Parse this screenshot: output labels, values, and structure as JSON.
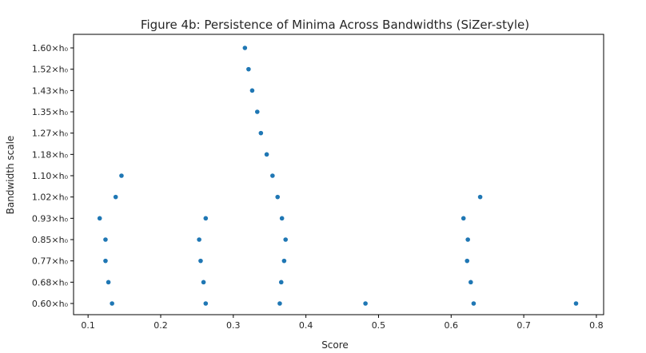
{
  "chart_data": {
    "type": "scatter",
    "title": "Figure 4b: Persistence of Minima Across Bandwidths (SiZer-style)",
    "xlabel": "Score",
    "ylabel": "Bandwidth scale",
    "xlim": [
      0.08,
      0.81
    ],
    "x_ticks": [
      "0.1",
      "0.2",
      "0.3",
      "0.4",
      "0.5",
      "0.6",
      "0.7",
      "0.8"
    ],
    "y_categories": [
      "0.60×h₀",
      "0.68×h₀",
      "0.77×h₀",
      "0.85×h₀",
      "0.93×h₀",
      "1.02×h₀",
      "1.10×h₀",
      "1.18×h₀",
      "1.27×h₀",
      "1.35×h₀",
      "1.43×h₀",
      "1.52×h₀",
      "1.60×h₀"
    ],
    "grid": false,
    "marker_color": "#1f77b4",
    "series": [
      {
        "points": [
          {
            "x": 0.133,
            "y": "0.60×h₀"
          },
          {
            "x": 0.262,
            "y": "0.60×h₀"
          },
          {
            "x": 0.364,
            "y": "0.60×h₀"
          },
          {
            "x": 0.482,
            "y": "0.60×h₀"
          },
          {
            "x": 0.631,
            "y": "0.60×h₀"
          },
          {
            "x": 0.772,
            "y": "0.60×h₀"
          },
          {
            "x": 0.128,
            "y": "0.68×h₀"
          },
          {
            "x": 0.259,
            "y": "0.68×h₀"
          },
          {
            "x": 0.366,
            "y": "0.68×h₀"
          },
          {
            "x": 0.627,
            "y": "0.68×h₀"
          },
          {
            "x": 0.124,
            "y": "0.77×h₀"
          },
          {
            "x": 0.255,
            "y": "0.77×h₀"
          },
          {
            "x": 0.37,
            "y": "0.77×h₀"
          },
          {
            "x": 0.622,
            "y": "0.77×h₀"
          },
          {
            "x": 0.124,
            "y": "0.85×h₀"
          },
          {
            "x": 0.253,
            "y": "0.85×h₀"
          },
          {
            "x": 0.372,
            "y": "0.85×h₀"
          },
          {
            "x": 0.623,
            "y": "0.85×h₀"
          },
          {
            "x": 0.116,
            "y": "0.93×h₀"
          },
          {
            "x": 0.262,
            "y": "0.93×h₀"
          },
          {
            "x": 0.367,
            "y": "0.93×h₀"
          },
          {
            "x": 0.617,
            "y": "0.93×h₀"
          },
          {
            "x": 0.138,
            "y": "1.02×h₀"
          },
          {
            "x": 0.361,
            "y": "1.02×h₀"
          },
          {
            "x": 0.64,
            "y": "1.02×h₀"
          },
          {
            "x": 0.146,
            "y": "1.10×h₀"
          },
          {
            "x": 0.354,
            "y": "1.10×h₀"
          },
          {
            "x": 0.346,
            "y": "1.18×h₀"
          },
          {
            "x": 0.338,
            "y": "1.27×h₀"
          },
          {
            "x": 0.333,
            "y": "1.35×h₀"
          },
          {
            "x": 0.326,
            "y": "1.43×h₀"
          },
          {
            "x": 0.321,
            "y": "1.52×h₀"
          },
          {
            "x": 0.316,
            "y": "1.60×h₀"
          }
        ]
      }
    ]
  }
}
